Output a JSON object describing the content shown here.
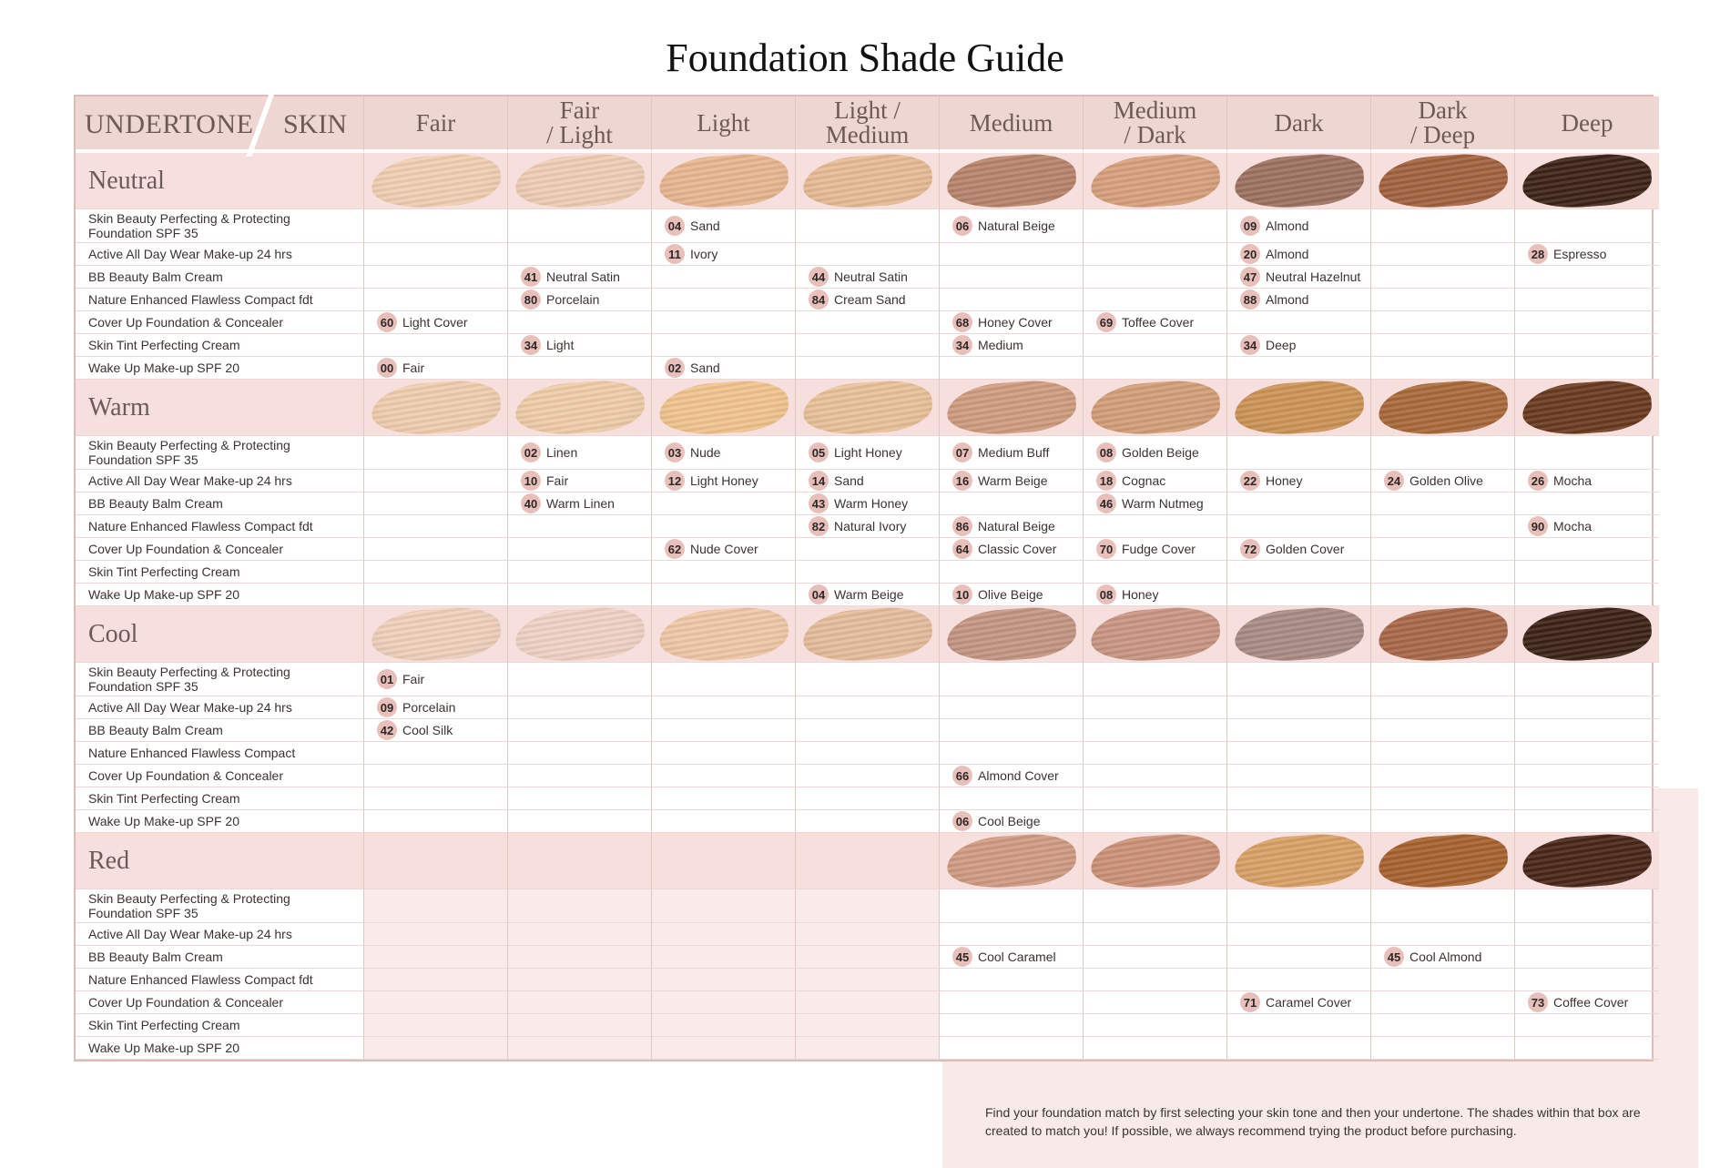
{
  "title": "Foundation Shade Guide",
  "header": {
    "undertone_label": "UNDERTONE",
    "skin_label": "SKIN",
    "columns": [
      "Fair",
      "Fair\n/ Light",
      "Light",
      "Light /\nMedium",
      "Medium",
      "Medium\n/ Dark",
      "Dark",
      "Dark\n/ Deep",
      "Deep"
    ]
  },
  "groups": [
    {
      "name": "Neutral",
      "swatches": [
        "#f1cfb2",
        "#efcdb4",
        "#e8b690",
        "#e7bb96",
        "#b8846a",
        "#d7a07d",
        "#9d7160",
        "#a2623f",
        "#3d2318"
      ],
      "rows": [
        {
          "product": "Skin Beauty Perfecting & Protecting Foundation SPF 35",
          "shades": [
            null,
            null,
            {
              "num": "04",
              "name": "Sand"
            },
            null,
            {
              "num": "06",
              "name": "Natural Beige"
            },
            null,
            {
              "num": "09",
              "name": "Almond"
            },
            null,
            null
          ]
        },
        {
          "product": "Active All Day Wear Make-up 24 hrs",
          "shades": [
            null,
            null,
            {
              "num": "11",
              "name": "Ivory"
            },
            null,
            null,
            null,
            {
              "num": "20",
              "name": "Almond"
            },
            null,
            {
              "num": "28",
              "name": "Espresso"
            }
          ]
        },
        {
          "product": "BB Beauty Balm Cream",
          "shades": [
            null,
            {
              "num": "41",
              "name": "Neutral Satin"
            },
            null,
            {
              "num": "44",
              "name": "Neutral Satin"
            },
            null,
            null,
            {
              "num": "47",
              "name": "Neutral Hazelnut"
            },
            null,
            null
          ]
        },
        {
          "product": "Nature Enhanced Flawless Compact fdt",
          "shades": [
            null,
            {
              "num": "80",
              "name": "Porcelain"
            },
            null,
            {
              "num": "84",
              "name": "Cream Sand"
            },
            null,
            null,
            {
              "num": "88",
              "name": "Almond"
            },
            null,
            null
          ]
        },
        {
          "product": "Cover Up Foundation & Concealer",
          "shades": [
            {
              "num": "60",
              "name": "Light Cover"
            },
            null,
            null,
            null,
            {
              "num": "68",
              "name": "Honey Cover"
            },
            {
              "num": "69",
              "name": "Toffee Cover"
            },
            null,
            null,
            null
          ]
        },
        {
          "product": "Skin Tint Perfecting Cream",
          "shades": [
            null,
            {
              "num": "34",
              "name": "Light"
            },
            null,
            null,
            {
              "num": "34",
              "name": "Medium"
            },
            null,
            {
              "num": "34",
              "name": "Deep"
            },
            null,
            null
          ]
        },
        {
          "product": "Wake Up Make-up SPF 20",
          "shades": [
            {
              "num": "00",
              "name": "Fair"
            },
            null,
            {
              "num": "02",
              "name": "Sand"
            },
            null,
            null,
            null,
            null,
            null,
            null
          ]
        }
      ]
    },
    {
      "name": "Warm",
      "swatches": [
        "#f0cdae",
        "#efcca8",
        "#f1c48e",
        "#e9c199",
        "#cf9c80",
        "#d49e78",
        "#cc9356",
        "#a9693a",
        "#6a3a1f"
      ],
      "rows": [
        {
          "product": "Skin Beauty Perfecting & Protecting Foundation SPF 35",
          "shades": [
            null,
            {
              "num": "02",
              "name": "Linen"
            },
            {
              "num": "03",
              "name": "Nude"
            },
            {
              "num": "05",
              "name": "Light Honey"
            },
            {
              "num": "07",
              "name": "Medium Buff"
            },
            {
              "num": "08",
              "name": "Golden Beige"
            },
            null,
            null,
            null
          ]
        },
        {
          "product": "Active All Day Wear Make-up 24 hrs",
          "shades": [
            null,
            {
              "num": "10",
              "name": "Fair"
            },
            {
              "num": "12",
              "name": "Light Honey"
            },
            {
              "num": "14",
              "name": "Sand"
            },
            {
              "num": "16",
              "name": "Warm Beige"
            },
            {
              "num": "18",
              "name": "Cognac"
            },
            {
              "num": "22",
              "name": "Honey"
            },
            {
              "num": "24",
              "name": "Golden Olive"
            },
            {
              "num": "26",
              "name": "Mocha"
            }
          ]
        },
        {
          "product": "BB Beauty Balm Cream",
          "shades": [
            null,
            {
              "num": "40",
              "name": "Warm Linen"
            },
            null,
            {
              "num": "43",
              "name": "Warm Honey"
            },
            null,
            {
              "num": "46",
              "name": "Warm Nutmeg"
            },
            null,
            null,
            null
          ]
        },
        {
          "product": "Nature Enhanced Flawless Compact fdt",
          "shades": [
            null,
            null,
            null,
            {
              "num": "82",
              "name": "Natural Ivory"
            },
            {
              "num": "86",
              "name": "Natural Beige"
            },
            null,
            null,
            null,
            {
              "num": "90",
              "name": "Mocha"
            }
          ]
        },
        {
          "product": "Cover Up Foundation & Concealer",
          "shades": [
            null,
            null,
            {
              "num": "62",
              "name": "Nude Cover"
            },
            null,
            {
              "num": "64",
              "name": "Classic Cover"
            },
            {
              "num": "70",
              "name": "Fudge Cover"
            },
            {
              "num": "72",
              "name": "Golden Cover"
            },
            null,
            null
          ]
        },
        {
          "product": "Skin Tint Perfecting Cream",
          "shades": [
            null,
            null,
            null,
            null,
            null,
            null,
            null,
            null,
            null
          ]
        },
        {
          "product": "Wake Up Make-up SPF 20",
          "shades": [
            null,
            null,
            null,
            {
              "num": "04",
              "name": "Warm Beige"
            },
            {
              "num": "10",
              "name": "Olive Beige"
            },
            {
              "num": "08",
              "name": "Honey"
            },
            null,
            null,
            null
          ]
        }
      ]
    },
    {
      "name": "Cool",
      "swatches": [
        "#efd0bb",
        "#efd2c4",
        "#f0c7a6",
        "#e6bc9c",
        "#c49582",
        "#c99583",
        "#a98b85",
        "#a8684a",
        "#3c2217"
      ],
      "rows": [
        {
          "product": "Skin Beauty Perfecting & Protecting Foundation SPF 35",
          "shades": [
            {
              "num": "01",
              "name": "Fair"
            },
            null,
            null,
            null,
            null,
            null,
            null,
            null,
            null
          ]
        },
        {
          "product": "Active All Day Wear Make-up 24 hrs",
          "shades": [
            {
              "num": "09",
              "name": "Porcelain"
            },
            null,
            null,
            null,
            null,
            null,
            null,
            null,
            null
          ]
        },
        {
          "product": "BB Beauty Balm Cream",
          "shades": [
            {
              "num": "42",
              "name": "Cool Silk"
            },
            null,
            null,
            null,
            null,
            null,
            null,
            null,
            null
          ]
        },
        {
          "product": "Nature Enhanced Flawless Compact",
          "shades": [
            null,
            null,
            null,
            null,
            null,
            null,
            null,
            null,
            null
          ]
        },
        {
          "product": "Cover Up Foundation & Concealer",
          "shades": [
            null,
            null,
            null,
            null,
            {
              "num": "66",
              "name": "Almond Cover"
            },
            null,
            null,
            null,
            null
          ]
        },
        {
          "product": "Skin Tint Perfecting Cream",
          "shades": [
            null,
            null,
            null,
            null,
            null,
            null,
            null,
            null,
            null
          ]
        },
        {
          "product": "Wake Up Make-up SPF 20",
          "shades": [
            null,
            null,
            null,
            null,
            {
              "num": "06",
              "name": "Cool Beige"
            },
            null,
            null,
            null,
            null
          ]
        }
      ]
    },
    {
      "name": "Red",
      "swatches": [
        null,
        null,
        null,
        null,
        "#d09b82",
        "#cc9176",
        "#d9a066",
        "#a7622f",
        "#4a2619"
      ],
      "shaded_columns": [
        0,
        1,
        2,
        3
      ],
      "rows": [
        {
          "product": "Skin Beauty Perfecting & Protecting Foundation SPF 35",
          "shades": [
            null,
            null,
            null,
            null,
            null,
            null,
            null,
            null,
            null
          ]
        },
        {
          "product": "Active All Day Wear Make-up 24 hrs",
          "shades": [
            null,
            null,
            null,
            null,
            null,
            null,
            null,
            null,
            null
          ]
        },
        {
          "product": "BB Beauty Balm Cream",
          "shades": [
            null,
            null,
            null,
            null,
            {
              "num": "45",
              "name": "Cool Caramel"
            },
            null,
            null,
            {
              "num": "45",
              "name": "Cool Almond"
            },
            null
          ]
        },
        {
          "product": "Nature Enhanced Flawless Compact fdt",
          "shades": [
            null,
            null,
            null,
            null,
            null,
            null,
            null,
            null,
            null
          ]
        },
        {
          "product": "Cover Up Foundation & Concealer",
          "shades": [
            null,
            null,
            null,
            null,
            null,
            null,
            {
              "num": "71",
              "name": "Caramel Cover"
            },
            null,
            {
              "num": "73",
              "name": "Coffee Cover"
            }
          ]
        },
        {
          "product": "Skin Tint Perfecting Cream",
          "shades": [
            null,
            null,
            null,
            null,
            null,
            null,
            null,
            null,
            null
          ]
        },
        {
          "product": "Wake Up Make-up SPF 20",
          "shades": [
            null,
            null,
            null,
            null,
            null,
            null,
            null,
            null,
            null
          ]
        }
      ]
    }
  ],
  "footer_note": "Find your foundation match by first selecting your skin tone and then your undertone. The shades within that box are created to match you! If possible, we always recommend trying the product before purchasing.",
  "colors": {
    "header_bg": "#eed6d3",
    "undertone_band": "#f6dfdd",
    "badge": "#e8c0bb",
    "border": "#dcbcb8"
  }
}
